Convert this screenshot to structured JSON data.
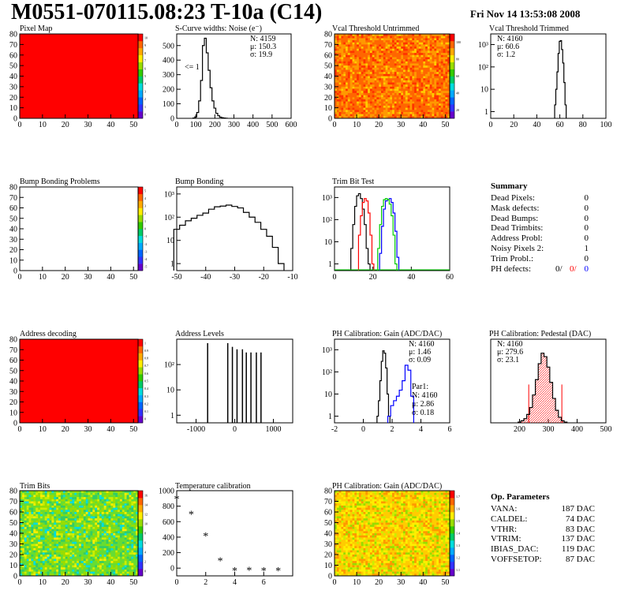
{
  "header": {
    "title": "M0551-070115.08:23 T-10a (C14)",
    "date": "Fri Nov 14 13:53:08 2008"
  },
  "colors": {
    "red": "#ff0000",
    "blue": "#0000ff",
    "green": "#00cc00",
    "black": "#000000"
  },
  "chart_data": [
    {
      "id": "pixel-map",
      "type": "heatmap",
      "title": "Pixel Map",
      "fill": "uniform-max",
      "x_ticks": [
        0,
        10,
        20,
        30,
        40,
        50
      ],
      "y_ticks": [
        0,
        10,
        20,
        30,
        40,
        50,
        60,
        70,
        80
      ],
      "xlim": [
        0,
        52
      ],
      "ylim": [
        0,
        80
      ],
      "colorbar_ticks": [
        "0",
        "1",
        "2",
        "3",
        "4",
        "5",
        "6",
        "7",
        "8",
        "9",
        "10"
      ],
      "color_scale_max": 10
    },
    {
      "id": "scurve",
      "type": "histogram",
      "title": "S-Curve widths: Noise (e⁻)",
      "x_ticks": [
        0,
        100,
        200,
        300,
        400,
        500,
        600
      ],
      "y_ticks": [
        0,
        100,
        200,
        300,
        400,
        500
      ],
      "xlim": [
        0,
        600
      ],
      "ylim": [
        0,
        580
      ],
      "stats": [
        "N: 4159",
        "μ: 150.3",
        "σ: 19.9"
      ],
      "annotation": "<= 1",
      "x": [
        90,
        100,
        110,
        120,
        130,
        140,
        150,
        160,
        170,
        180,
        190,
        200,
        210,
        220,
        230,
        240,
        250,
        260
      ],
      "values": [
        2,
        10,
        40,
        120,
        260,
        500,
        550,
        450,
        330,
        210,
        120,
        70,
        35,
        18,
        8,
        4,
        2,
        1
      ]
    },
    {
      "id": "vcal-untrimmed",
      "type": "heatmap",
      "title": "Vcal Threshold Untrimmed",
      "fill": "noise-orange",
      "x_ticks": [
        0,
        10,
        20,
        30,
        40,
        50
      ],
      "y_ticks": [
        0,
        10,
        20,
        30,
        40,
        50,
        60,
        70,
        80
      ],
      "xlim": [
        0,
        52
      ],
      "ylim": [
        0,
        80
      ],
      "colorbar_ticks": [
        "20",
        "40",
        "60",
        "80",
        "100"
      ],
      "color_scale_max": 110
    },
    {
      "id": "vcal-trimmed",
      "type": "histogram",
      "title": "Vcal Threshold Trimmed",
      "log_y": true,
      "x_ticks": [
        0,
        20,
        40,
        60,
        80,
        100
      ],
      "y_ticks": [
        "1",
        "10",
        "10²",
        "10³"
      ],
      "xlim": [
        0,
        100
      ],
      "ylim": [
        0.5,
        3000
      ],
      "stats": [
        "N: 4160",
        "μ: 60.6",
        "σ: 1.2"
      ],
      "x": [
        56,
        57,
        58,
        59,
        60,
        61,
        62,
        63,
        64,
        65
      ],
      "values": [
        2,
        10,
        60,
        400,
        1400,
        1500,
        600,
        150,
        20,
        2
      ]
    },
    {
      "id": "bump-problems",
      "type": "heatmap",
      "title": "Bump Bonding Problems",
      "fill": "empty",
      "x_ticks": [
        0,
        10,
        20,
        30,
        40,
        50
      ],
      "y_ticks": [
        0,
        10,
        20,
        30,
        40,
        50,
        60,
        70,
        80
      ],
      "xlim": [
        0,
        52
      ],
      "ylim": [
        0,
        80
      ],
      "colorbar_ticks": [
        "-5",
        "-4",
        "-3",
        "-2",
        "-1",
        "0",
        "1",
        "2",
        "3",
        "4",
        "5"
      ],
      "color_scale_max": 5
    },
    {
      "id": "bump-bonding",
      "type": "histogram",
      "title": "Bump Bonding",
      "log_y": true,
      "x_ticks": [
        -50,
        -40,
        -30,
        -20,
        -10
      ],
      "y_ticks": [
        "1",
        "10",
        "10²",
        "10³"
      ],
      "xlim": [
        -50,
        -10
      ],
      "ylim": [
        0.5,
        2000
      ],
      "x": [
        -50,
        -48,
        -46,
        -44,
        -42,
        -40,
        -38,
        -36,
        -34,
        -32,
        -30,
        -28,
        -26,
        -24,
        -22,
        -20,
        -18,
        -16,
        -14
      ],
      "values": [
        30,
        45,
        70,
        90,
        120,
        150,
        220,
        280,
        300,
        330,
        290,
        250,
        160,
        100,
        60,
        30,
        15,
        5,
        1
      ]
    },
    {
      "id": "trim-bit-test",
      "type": "histogram",
      "title": "Trim Bit Test",
      "log_y": true,
      "x_ticks": [
        0,
        20,
        40,
        60
      ],
      "y_ticks": [
        "1",
        "10",
        "10²",
        "10³"
      ],
      "xlim": [
        0,
        60
      ],
      "ylim": [
        0.5,
        3000
      ],
      "series": [
        {
          "color": "black",
          "x": [
            9,
            10,
            11,
            12,
            13,
            14,
            15,
            16,
            17,
            18
          ],
          "values": [
            5,
            60,
            400,
            1200,
            1500,
            900,
            300,
            60,
            5,
            1
          ]
        },
        {
          "color": "red",
          "x": [
            13,
            14,
            15,
            16,
            17,
            18,
            19,
            20
          ],
          "values": [
            20,
            150,
            600,
            900,
            700,
            200,
            20,
            1
          ]
        },
        {
          "color": "blue",
          "x": [
            24,
            25,
            26,
            27,
            28,
            29,
            30,
            31,
            32,
            33
          ],
          "values": [
            3,
            50,
            300,
            700,
            800,
            900,
            600,
            200,
            30,
            2
          ]
        },
        {
          "color": "green",
          "x": [
            23,
            24,
            25,
            26,
            27,
            28,
            29,
            30,
            31,
            32
          ],
          "values": [
            5,
            60,
            400,
            800,
            900,
            800,
            500,
            150,
            20,
            1
          ]
        }
      ]
    },
    {
      "id": "pixel-map-2",
      "type": "heatmap",
      "title": "Address decoding",
      "fill": "uniform-max",
      "x_ticks": [
        0,
        10,
        20,
        30,
        40,
        50
      ],
      "y_ticks": [
        0,
        10,
        20,
        30,
        40,
        50,
        60,
        70,
        80
      ],
      "xlim": [
        0,
        52
      ],
      "ylim": [
        0,
        80
      ],
      "colorbar_ticks": [
        "0",
        "0.1",
        "0.2",
        "0.3",
        "0.4",
        "0.5",
        "0.6",
        "0.7",
        "0.8",
        "0.9",
        "1"
      ],
      "color_scale_max": 1
    },
    {
      "id": "address-levels",
      "type": "histogram",
      "title": "Address Levels",
      "log_y": true,
      "x_ticks": [
        -1000,
        0,
        1000
      ],
      "y_ticks": [
        "1",
        "10",
        "10²"
      ],
      "xlim": [
        -1500,
        1500
      ],
      "ylim": [
        0.5,
        1000
      ],
      "x": [
        -700,
        -180,
        -60,
        60,
        200,
        300,
        420,
        560,
        680
      ],
      "values": [
        700,
        700,
        500,
        400,
        400,
        300,
        300,
        300,
        300
      ]
    },
    {
      "id": "ph-gain",
      "type": "histogram",
      "title": "PH Calibration: Gain (ADC/DAC)",
      "log_y": true,
      "x_ticks": [
        -2,
        0,
        2,
        4,
        6
      ],
      "y_ticks": [
        "1",
        "10",
        "10²",
        "10³"
      ],
      "xlim": [
        -2,
        6
      ],
      "ylim": [
        0.5,
        3000
      ],
      "stats": [
        "N: 4160",
        "μ: 1.46",
        "σ: 0.09"
      ],
      "series": [
        {
          "color": "black",
          "x": [
            1.0,
            1.1,
            1.2,
            1.3,
            1.4,
            1.5,
            1.6,
            1.7,
            1.8
          ],
          "values": [
            1,
            5,
            40,
            300,
            900,
            700,
            150,
            10,
            1
          ]
        },
        {
          "color": "blue",
          "x": [
            1.8,
            2.0,
            2.2,
            2.4,
            2.6,
            2.8,
            3.0,
            3.2,
            3.4
          ],
          "values": [
            1,
            3,
            5,
            8,
            15,
            40,
            200,
            120,
            8
          ]
        }
      ],
      "fit_box": {
        "color": "blue",
        "lines": [
          "Par1:",
          "N: 4160",
          "μ: 2.86",
          "σ: 0.18"
        ]
      }
    },
    {
      "id": "ph-pedestal",
      "type": "histogram",
      "title": "PH Calibration: Pedestal (DAC)",
      "x_ticks": [
        200,
        300,
        400,
        500
      ],
      "xlim": [
        100,
        500
      ],
      "ylim": [
        0,
        120
      ],
      "stats": [
        {
          "text": "N: 4160",
          "color": "black"
        },
        {
          "text": "μ: 279.6",
          "color": "red"
        },
        {
          "text": "σ: 23.1",
          "color": "red"
        }
      ],
      "x": [
        200,
        210,
        220,
        230,
        240,
        250,
        260,
        270,
        280,
        290,
        300,
        310,
        320,
        330,
        340,
        350,
        360
      ],
      "values": [
        1,
        3,
        6,
        12,
        22,
        40,
        62,
        85,
        100,
        95,
        80,
        58,
        35,
        18,
        8,
        3,
        1
      ],
      "cut_lines": [
        232,
        347
      ]
    },
    {
      "id": "trim-bits",
      "type": "heatmap",
      "title": "Trim Bits",
      "fill": "noise-green",
      "x_ticks": [
        0,
        10,
        20,
        30,
        40,
        50
      ],
      "y_ticks": [
        0,
        10,
        20,
        30,
        40,
        50,
        60,
        70,
        80
      ],
      "xlim": [
        0,
        52
      ],
      "ylim": [
        0,
        80
      ],
      "colorbar_ticks": [
        "0",
        "2",
        "4",
        "6",
        "8",
        "10",
        "12",
        "14",
        "16"
      ],
      "color_scale_max": 16
    },
    {
      "id": "temp-cal",
      "type": "scatter",
      "title": "Temperature calibration",
      "x_ticks": [
        0,
        2,
        4,
        6
      ],
      "y_ticks": [
        0,
        200,
        400,
        600,
        800,
        1000
      ],
      "xlim": [
        0,
        8
      ],
      "ylim": [
        -100,
        1000
      ],
      "x": [
        0,
        1,
        2,
        3,
        4,
        5,
        6,
        7
      ],
      "values": [
        900,
        700,
        420,
        100,
        -30,
        -25,
        -30,
        -30
      ]
    },
    {
      "id": "ph-gain-map",
      "type": "heatmap",
      "title": "PH Calibration: Gain (ADC/DAC)",
      "fill": "noise-yellow",
      "x_ticks": [
        0,
        10,
        20,
        30,
        40,
        50
      ],
      "y_ticks": [
        0,
        10,
        20,
        30,
        40,
        50,
        60,
        70,
        80
      ],
      "xlim": [
        0,
        52
      ],
      "ylim": [
        0,
        80
      ],
      "colorbar_ticks": [
        "1.1",
        "1.2",
        "1.3",
        "1.4",
        "1.5",
        "1.6",
        "1.7"
      ],
      "color_scale_max": 1.8
    }
  ],
  "summary": {
    "title": "Summary",
    "rows": [
      {
        "label": "Dead Pixels:",
        "value": "0"
      },
      {
        "label": "Mask defects:",
        "value": "0"
      },
      {
        "label": "Dead Bumps:",
        "value": "0"
      },
      {
        "label": "Dead Trimbits:",
        "value": "0"
      },
      {
        "label": "Address Probl:",
        "value": "0"
      },
      {
        "label": "Noisy Pixels 2:",
        "value": "1"
      },
      {
        "label": "Trim Probl.:",
        "value": "0"
      }
    ],
    "ph_defects": {
      "label": "PH defects:",
      "v1": "0/",
      "v2": "0/",
      "v3": "0"
    }
  },
  "op_params": {
    "title": "Op. Parameters",
    "rows": [
      {
        "label": "VANA:",
        "value": "187 DAC"
      },
      {
        "label": "CALDEL:",
        "value": "74 DAC"
      },
      {
        "label": "VTHR:",
        "value": "83 DAC"
      },
      {
        "label": "VTRIM:",
        "value": "137 DAC"
      },
      {
        "label": "IBIAS_DAC:",
        "value": "119 DAC"
      },
      {
        "label": "VOFFSETOP:",
        "value": "87 DAC"
      }
    ]
  }
}
